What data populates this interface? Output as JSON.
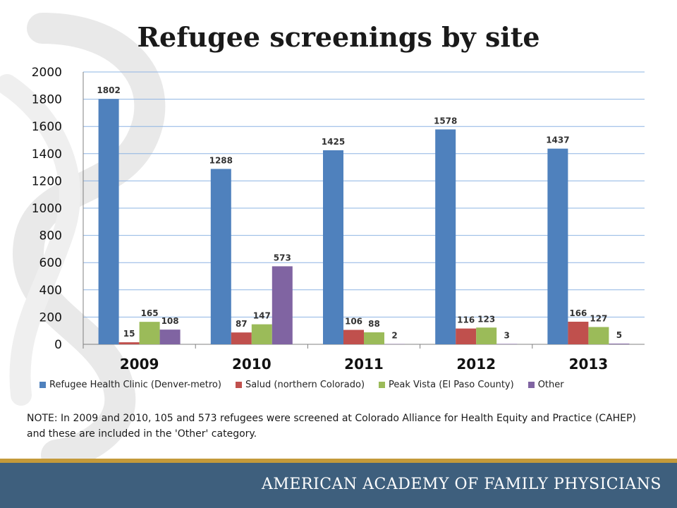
{
  "slide": {
    "title": "Refugee screenings by site",
    "note": "NOTE:  In 2009 and 2010, 105 and 573 refugees were screened at Colorado Alliance for Health Equity and Practice (CAHEP) and these are included in the 'Other' category.",
    "footer": "AMERICAN ACADEMY OF FAMILY PHYSICIANS",
    "colors": {
      "footer": "#3e5f7d",
      "accent": "#c49a3a",
      "watermark": "#e9e9e9"
    }
  },
  "chart_data": {
    "type": "bar",
    "categories": [
      "2009",
      "2010",
      "2011",
      "2012",
      "2013"
    ],
    "series": [
      {
        "name": "Refugee Health Clinic (Denver-metro)",
        "color": "#4f81bd",
        "values": [
          1802,
          1288,
          1425,
          1578,
          1437
        ]
      },
      {
        "name": "Salud (northern Colorado)",
        "color": "#c0504d",
        "values": [
          15,
          87,
          106,
          116,
          166
        ]
      },
      {
        "name": "Peak Vista (El Paso County)",
        "color": "#9bbb59",
        "values": [
          165,
          147,
          88,
          123,
          127
        ]
      },
      {
        "name": "Other",
        "color": "#8064a2",
        "values": [
          108,
          573,
          2,
          3,
          5
        ]
      }
    ],
    "ylim": [
      0,
      2000
    ],
    "yticks": [
      0,
      200,
      400,
      600,
      800,
      1000,
      1200,
      1400,
      1600,
      1800,
      2000
    ],
    "grid": true,
    "legend": "bottom"
  }
}
